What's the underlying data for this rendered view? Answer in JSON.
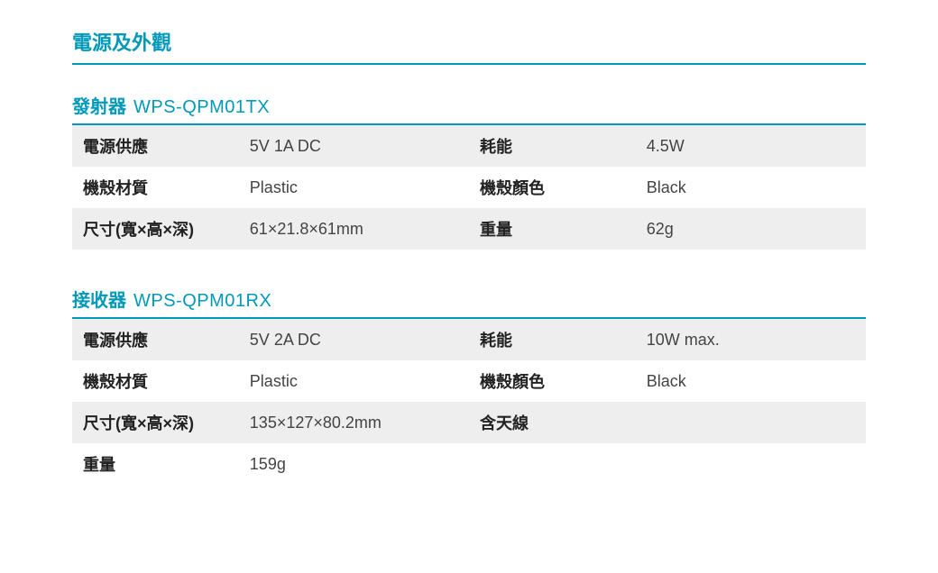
{
  "colors": {
    "accent": "#0099b8",
    "row_alt_bg": "#eeeeee",
    "row_bg": "#ffffff",
    "text": "#333333",
    "value_text": "#444444"
  },
  "section": {
    "title": "電源及外觀"
  },
  "blocks": [
    {
      "label": "發射器",
      "model": "WPS-QPM01TX",
      "rows": [
        {
          "k1": "電源供應",
          "v1": "5V 1A DC",
          "k2": "耗能",
          "v2": "4.5W"
        },
        {
          "k1": "機殼材質",
          "v1": "Plastic",
          "k2": "機殼顏色",
          "v2": "Black"
        },
        {
          "k1": "尺寸(寬×高×深)",
          "v1": "61×21.8×61mm",
          "k2": "重量",
          "v2": "62g"
        }
      ]
    },
    {
      "label": "接收器",
      "model": "WPS-QPM01RX",
      "rows": [
        {
          "k1": "電源供應",
          "v1": "5V 2A DC",
          "k2": "耗能",
          "v2": "10W max."
        },
        {
          "k1": "機殼材質",
          "v1": "Plastic",
          "k2": "機殼顏色",
          "v2": "Black"
        },
        {
          "k1": "尺寸(寬×高×深)",
          "v1": "135×127×80.2mm",
          "k2": "含天線",
          "v2": ""
        },
        {
          "k1": "重量",
          "v1": "159g",
          "k2": "",
          "v2": ""
        }
      ]
    }
  ]
}
